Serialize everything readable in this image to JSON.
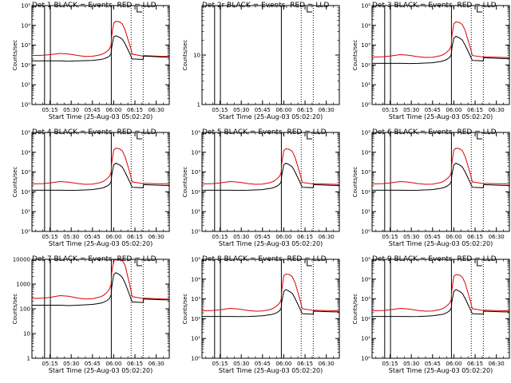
{
  "chart_data": {
    "type": "line",
    "figure_title": "",
    "xlabel": "Start Time (25-Aug-03 05:02:20)",
    "ylabel": "Counts/sec",
    "x_tick_labels": [
      "05:15",
      "05:30",
      "05:45",
      "06:00",
      "06:15",
      "06:30"
    ],
    "x_ticks_minutes": [
      15,
      30,
      45,
      60,
      75,
      90
    ],
    "xlim_minutes": [
      2.3,
      99.2
    ],
    "legend_text": "BLACK = Events, RED = LLD",
    "series_names": [
      "Events",
      "LLD"
    ],
    "series_colors": {
      "Events": "#000000",
      "LLD": "#dd0000"
    },
    "vertical_markers": {
      "solid_minutes": [
        11.2,
        15.3,
        58.3
      ],
      "dotted_minutes": [
        72.3,
        80.8
      ],
      "bracket_minutes": [
        76.5,
        80.0
      ]
    },
    "curve_time_minutes": [
      2.3,
      10,
      15,
      22,
      28,
      35,
      40,
      45,
      48,
      51,
      53,
      55,
      57,
      58.2,
      58.6,
      60,
      61.5,
      64,
      66,
      68,
      70,
      72,
      73,
      80.8,
      81,
      95,
      99.2
    ],
    "panels": [
      {
        "title": "Det 1",
        "ylim": [
          1,
          100000
        ],
        "ytick_labels": [
          "10⁰",
          "10¹",
          "10²",
          "10³",
          "10⁴",
          "10⁵"
        ],
        "events": [
          160,
          160,
          160,
          160,
          155,
          160,
          165,
          170,
          180,
          190,
          205,
          230,
          280,
          380,
          800,
          2600,
          3000,
          2500,
          2000,
          1200,
          600,
          300,
          200,
          190,
          280,
          250,
          250
        ],
        "lld": [
          300,
          310,
          330,
          380,
          360,
          300,
          270,
          275,
          300,
          330,
          380,
          470,
          650,
          1000,
          3000,
          13000,
          16000,
          15000,
          12000,
          6000,
          2000,
          700,
          350,
          280,
          300,
          270,
          270
        ]
      },
      {
        "title": "Det 2r",
        "ylim": [
          1,
          100
        ],
        "ytick_labels": [
          "1",
          "10",
          ""
        ],
        "events": [],
        "lld": []
      },
      {
        "title": "Det 3",
        "ylim": [
          1,
          100000
        ],
        "ytick_labels": [
          "10⁰",
          "10¹",
          "10²",
          "10³",
          "10⁴",
          "10⁵"
        ],
        "events": [
          120,
          120,
          120,
          120,
          118,
          120,
          125,
          130,
          140,
          150,
          165,
          190,
          240,
          330,
          700,
          2300,
          2800,
          2300,
          1800,
          1000,
          500,
          250,
          170,
          160,
          230,
          210,
          210
        ],
        "lld": [
          250,
          260,
          280,
          330,
          310,
          260,
          240,
          245,
          270,
          300,
          350,
          440,
          600,
          950,
          2800,
          12000,
          15000,
          14000,
          11000,
          5500,
          1800,
          600,
          300,
          250,
          260,
          240,
          240
        ]
      },
      {
        "title": "Det 4",
        "ylim": [
          1,
          100000
        ],
        "ytick_labels": [
          "10⁰",
          "10¹",
          "10²",
          "10³",
          "10⁴",
          "10⁵"
        ],
        "events": [
          120,
          120,
          120,
          120,
          118,
          120,
          125,
          130,
          140,
          150,
          165,
          190,
          240,
          330,
          700,
          2300,
          2800,
          2300,
          1800,
          1000,
          500,
          250,
          170,
          160,
          230,
          210,
          210
        ],
        "lld": [
          250,
          260,
          280,
          330,
          310,
          260,
          240,
          245,
          270,
          300,
          350,
          440,
          600,
          950,
          2800,
          13000,
          16000,
          15000,
          12000,
          6000,
          2000,
          650,
          320,
          260,
          270,
          250,
          250
        ]
      },
      {
        "title": "Det 5",
        "ylim": [
          1,
          100000
        ],
        "ytick_labels": [
          "10⁰",
          "10¹",
          "10²",
          "10³",
          "10⁴",
          "10⁵"
        ],
        "events": [
          120,
          120,
          120,
          120,
          118,
          120,
          125,
          130,
          140,
          150,
          165,
          190,
          240,
          330,
          700,
          2300,
          2800,
          2300,
          1800,
          1000,
          500,
          250,
          170,
          160,
          230,
          210,
          210
        ],
        "lld": [
          250,
          260,
          280,
          330,
          310,
          260,
          240,
          245,
          270,
          300,
          350,
          440,
          600,
          950,
          2800,
          12000,
          15000,
          14000,
          11000,
          5500,
          1800,
          600,
          300,
          250,
          260,
          240,
          240
        ]
      },
      {
        "title": "Det 6",
        "ylim": [
          1,
          100000
        ],
        "ytick_labels": [
          "10⁰",
          "10¹",
          "10²",
          "10³",
          "10⁴",
          "10⁵"
        ],
        "events": [
          120,
          120,
          120,
          120,
          118,
          120,
          125,
          130,
          140,
          150,
          165,
          190,
          240,
          330,
          700,
          2300,
          2800,
          2300,
          1800,
          1000,
          500,
          250,
          170,
          160,
          230,
          210,
          210
        ],
        "lld": [
          250,
          260,
          280,
          330,
          310,
          260,
          240,
          245,
          270,
          300,
          350,
          440,
          600,
          950,
          2800,
          13000,
          16000,
          15000,
          12000,
          6000,
          2000,
          650,
          320,
          260,
          270,
          250,
          250
        ]
      },
      {
        "title": "Det 7",
        "ylim": [
          1,
          10000
        ],
        "ytick_labels": [
          "1",
          "10",
          "100",
          "1000",
          "10000"
        ],
        "events": [
          140,
          140,
          140,
          140,
          135,
          140,
          145,
          150,
          160,
          170,
          185,
          210,
          260,
          360,
          750,
          2400,
          2900,
          2400,
          1900,
          1100,
          550,
          270,
          190,
          180,
          250,
          230,
          230
        ],
        "lld": [
          260,
          270,
          290,
          340,
          320,
          270,
          250,
          255,
          280,
          310,
          360,
          450,
          620,
          980,
          2900,
          9000,
          9500,
          9300,
          9000,
          5800,
          1900,
          620,
          310,
          260,
          270,
          250,
          250
        ]
      },
      {
        "title": "Det 8",
        "ylim": [
          1,
          100000
        ],
        "ytick_labels": [
          "10⁰",
          "10¹",
          "10²",
          "10³",
          "10⁴",
          "10⁵"
        ],
        "events": [
          130,
          130,
          130,
          130,
          128,
          130,
          135,
          140,
          150,
          160,
          175,
          200,
          250,
          340,
          720,
          2400,
          3000,
          2400,
          1900,
          1050,
          520,
          260,
          180,
          170,
          240,
          220,
          220
        ],
        "lld": [
          250,
          260,
          280,
          330,
          310,
          260,
          240,
          245,
          270,
          300,
          350,
          440,
          600,
          950,
          2800,
          15000,
          18000,
          17000,
          13000,
          6500,
          2100,
          650,
          320,
          260,
          270,
          250,
          250
        ]
      },
      {
        "title": "Det 9",
        "ylim": [
          1,
          100000
        ],
        "ytick_labels": [
          "10⁰",
          "10¹",
          "10²",
          "10³",
          "10⁴",
          "10⁵"
        ],
        "events": [
          130,
          130,
          130,
          130,
          128,
          130,
          135,
          140,
          150,
          160,
          175,
          200,
          250,
          340,
          720,
          2400,
          3000,
          2400,
          1900,
          1050,
          520,
          260,
          180,
          170,
          240,
          220,
          220
        ],
        "lld": [
          250,
          260,
          280,
          330,
          310,
          260,
          240,
          245,
          270,
          300,
          350,
          440,
          600,
          950,
          2800,
          14000,
          17000,
          16000,
          12500,
          6200,
          2000,
          650,
          320,
          260,
          270,
          250,
          250
        ]
      }
    ]
  }
}
